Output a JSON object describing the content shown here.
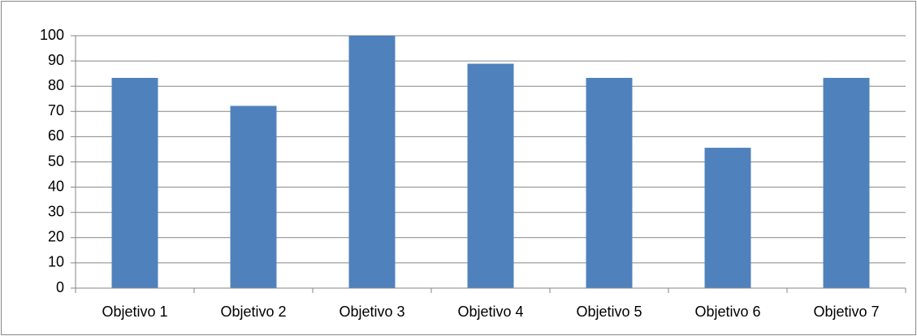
{
  "chart_data": {
    "type": "bar",
    "categories": [
      "Objetivo 1",
      "Objetivo 2",
      "Objetivo 3",
      "Objetivo 4",
      "Objetivo 5",
      "Objetivo 6",
      "Objetivo 7"
    ],
    "values": [
      83.3,
      72.2,
      100,
      88.9,
      83.3,
      55.6,
      83.3
    ],
    "color": "#4f81bd",
    "ylim": [
      0,
      100
    ],
    "yticks": [
      0,
      10,
      20,
      30,
      40,
      50,
      60,
      70,
      80,
      90,
      100
    ],
    "grid": true
  }
}
